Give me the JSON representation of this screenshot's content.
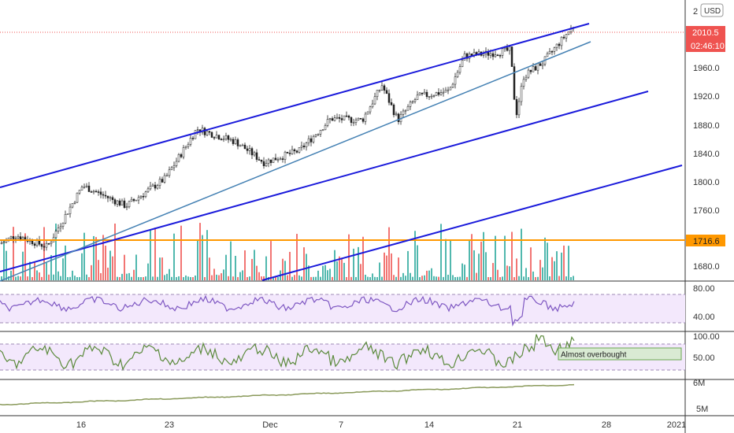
{
  "currency_badge": "USD",
  "price_label": "2010.5",
  "countdown_label": "02:46:10",
  "horizontal_level_label": "1716.6",
  "annotation": "Almost overbought",
  "price_axis": {
    "ticks": [
      "1680.0",
      "1720.0",
      "1760.0",
      "1800.0",
      "1840.0",
      "1880.0",
      "1920.0",
      "1960.0",
      "2"
    ],
    "range": [
      1660,
      2045
    ]
  },
  "rsi_axis": {
    "ticks": [
      "80.00",
      "40.00"
    ],
    "range": [
      10,
      90
    ]
  },
  "stoch_axis": {
    "ticks": [
      "100.00",
      "50.00"
    ],
    "range": [
      0,
      110
    ]
  },
  "obv_axis": {
    "ticks": [
      "6M",
      "5M"
    ],
    "range": [
      4.5,
      6.5
    ]
  },
  "x_axis": {
    "ticks": [
      "16",
      "23",
      "Dec",
      "7",
      "14",
      "21",
      "28",
      "2021"
    ]
  },
  "colors": {
    "up": "#26a69a",
    "down": "#ef5350",
    "channel": "#1a1adb",
    "trendline": "#4682b4",
    "hline": "#ff9800",
    "rsi": "#7e57c2",
    "stoch": "#5b8a3c",
    "obv": "#8a9a5b",
    "price_label_bg": "#ef5350"
  },
  "chart_data": {
    "type": "candlestick",
    "symbol_quote": "USD",
    "x_dates": [
      "2020-11-10",
      "2020-11-30",
      "2020-12-21",
      "2021-01-01"
    ],
    "close_range": [
      1690,
      2012
    ],
    "last_price": 2010.5,
    "horizontal_level": 1716.6,
    "indicators": [
      "volume",
      "RSI",
      "Stochastic",
      "OBV"
    ],
    "annotations": [
      "Almost overbought"
    ]
  }
}
